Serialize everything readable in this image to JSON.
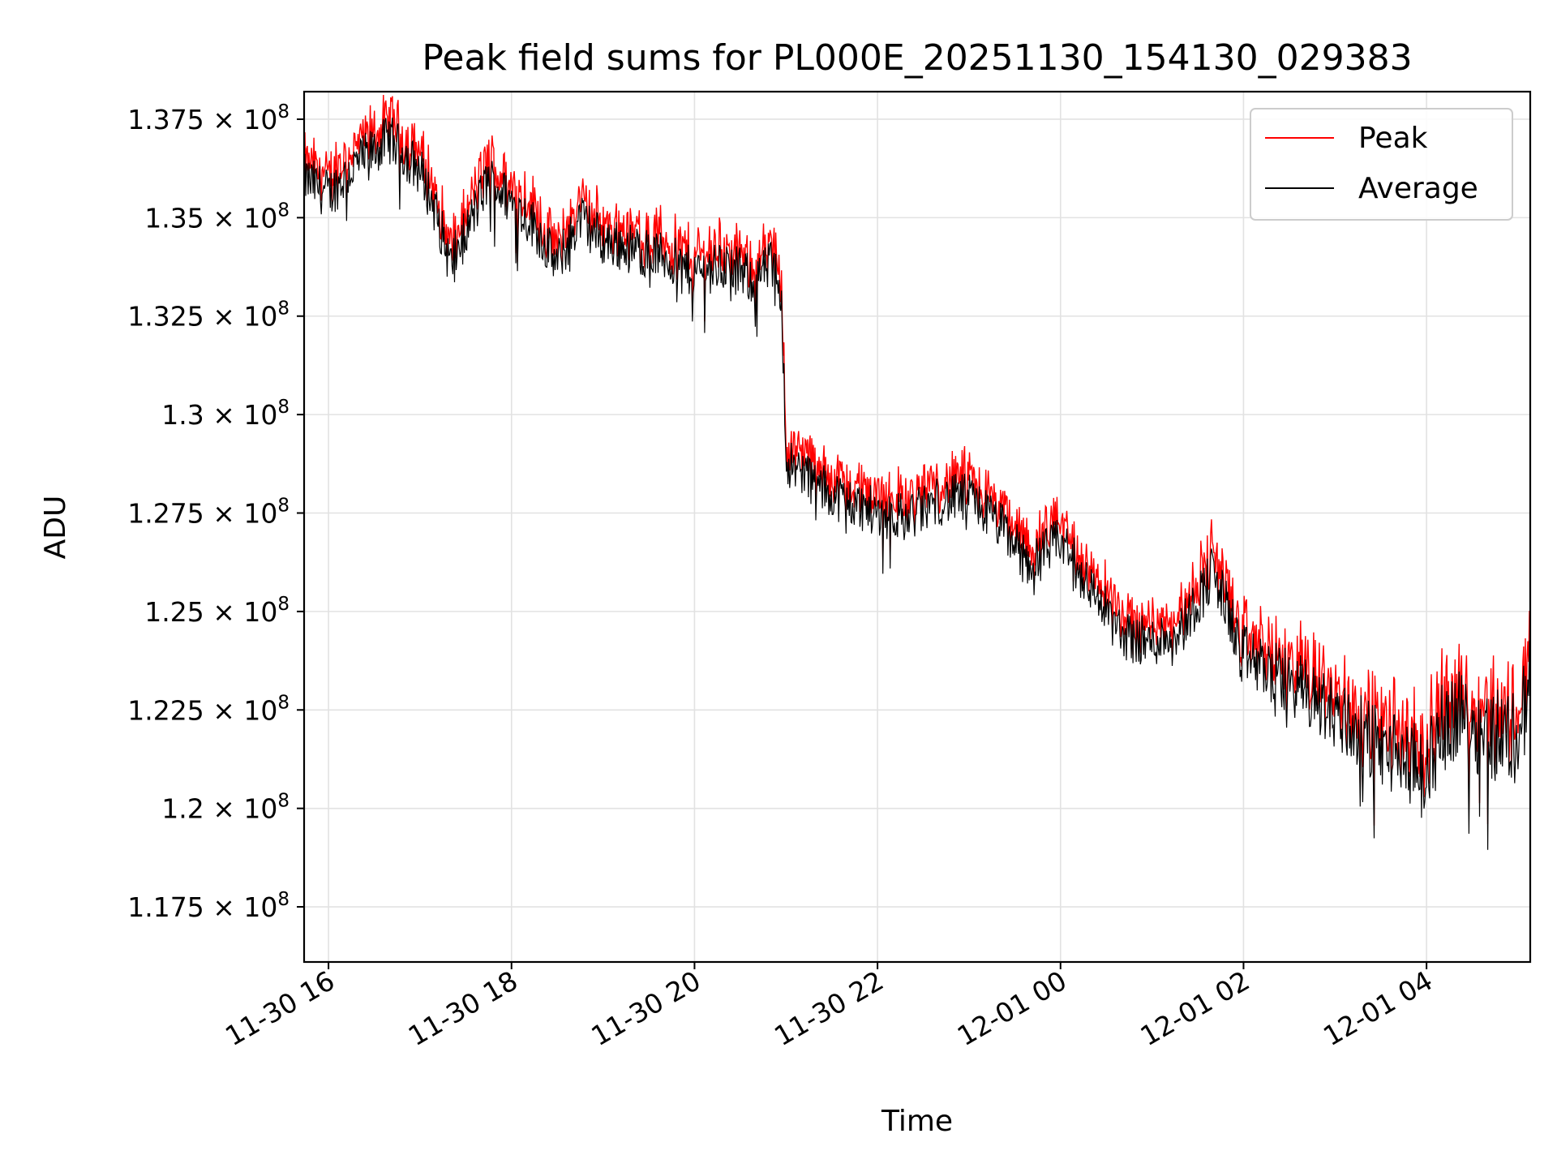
{
  "chart_data": {
    "type": "line",
    "title": "Peak field sums for PL000E_20251130_154130_029383",
    "xlabel": "Time",
    "ylabel": "ADU",
    "x_range": [
      "2025-11-30 15:44",
      "2025-12-01 05:08"
    ],
    "ylim": [
      116100000,
      138200000
    ],
    "y_ticks": [
      {
        "value": 117500000,
        "mantissa": "1.175",
        "exponent": "8"
      },
      {
        "value": 120000000,
        "mantissa": "1.2",
        "exponent": "8"
      },
      {
        "value": 122500000,
        "mantissa": "1.225",
        "exponent": "8"
      },
      {
        "value": 125000000,
        "mantissa": "1.25",
        "exponent": "8"
      },
      {
        "value": 127500000,
        "mantissa": "1.275",
        "exponent": "8"
      },
      {
        "value": 130000000,
        "mantissa": "1.3",
        "exponent": "8"
      },
      {
        "value": 132500000,
        "mantissa": "1.325",
        "exponent": "8"
      },
      {
        "value": 135000000,
        "mantissa": "1.35",
        "exponent": "8"
      },
      {
        "value": 137500000,
        "mantissa": "1.375",
        "exponent": "8"
      }
    ],
    "x_ticks": [
      {
        "time": "2025-11-30 16:00",
        "label": "11-30 16"
      },
      {
        "time": "2025-11-30 18:00",
        "label": "11-30 18"
      },
      {
        "time": "2025-11-30 20:00",
        "label": "11-30 20"
      },
      {
        "time": "2025-11-30 22:00",
        "label": "11-30 22"
      },
      {
        "time": "2025-12-01 00:00",
        "label": "12-01 00"
      },
      {
        "time": "2025-12-01 02:00",
        "label": "12-01 02"
      },
      {
        "time": "2025-12-01 04:00",
        "label": "12-01 04"
      }
    ],
    "times": [
      "2025-11-30 15:44",
      "2025-11-30 16:00",
      "2025-11-30 16:20",
      "2025-11-30 16:40",
      "2025-11-30 17:00",
      "2025-11-30 17:10",
      "2025-11-30 17:20",
      "2025-11-30 17:30",
      "2025-11-30 17:45",
      "2025-11-30 18:00",
      "2025-11-30 18:15",
      "2025-11-30 18:30",
      "2025-11-30 18:45",
      "2025-11-30 19:00",
      "2025-11-30 19:20",
      "2025-11-30 19:40",
      "2025-11-30 20:00",
      "2025-11-30 20:20",
      "2025-11-30 20:40",
      "2025-11-30 20:50",
      "2025-11-30 20:57",
      "2025-11-30 21:00",
      "2025-11-30 21:10",
      "2025-11-30 21:20",
      "2025-11-30 21:40",
      "2025-11-30 22:00",
      "2025-11-30 22:20",
      "2025-11-30 22:40",
      "2025-11-30 23:00",
      "2025-11-30 23:20",
      "2025-11-30 23:40",
      "2025-12-01 00:00",
      "2025-12-01 00:20",
      "2025-12-01 00:40",
      "2025-12-01 01:00",
      "2025-12-01 01:20",
      "2025-12-01 01:40",
      "2025-12-01 02:00",
      "2025-12-01 02:20",
      "2025-12-01 02:40",
      "2025-12-01 03:00",
      "2025-12-01 03:20",
      "2025-12-01 03:40",
      "2025-12-01 04:00",
      "2025-12-01 04:10",
      "2025-12-01 04:20",
      "2025-12-01 04:40",
      "2025-12-01 05:00",
      "2025-12-01 05:08"
    ],
    "series": [
      {
        "name": "Peak",
        "color": "#ff0000",
        "values": [
          136200000,
          135800000,
          136600000,
          137200000,
          136400000,
          135400000,
          134000000,
          134800000,
          136200000,
          135600000,
          135000000,
          134000000,
          135200000,
          134600000,
          134400000,
          134200000,
          133800000,
          134000000,
          133600000,
          134000000,
          133400000,
          129000000,
          128800000,
          128400000,
          128000000,
          127700000,
          127600000,
          128000000,
          128100000,
          127400000,
          126400000,
          127000000,
          125800000,
          124600000,
          124400000,
          124800000,
          126200000,
          124100000,
          123600000,
          123200000,
          122600000,
          122000000,
          121600000,
          121100000,
          122200000,
          122600000,
          122100000,
          122000000,
          123400000
        ]
      },
      {
        "name": "Average",
        "color": "#000000",
        "values": [
          136000000,
          135600000,
          136400000,
          137000000,
          136200000,
          135200000,
          133800000,
          134600000,
          136000000,
          135400000,
          134800000,
          133800000,
          135000000,
          134400000,
          134200000,
          134000000,
          133600000,
          133800000,
          133400000,
          133800000,
          133200000,
          128800000,
          128600000,
          128200000,
          127800000,
          127500000,
          127400000,
          127800000,
          127900000,
          127200000,
          126200000,
          126800000,
          125600000,
          124400000,
          124200000,
          124600000,
          126000000,
          123900000,
          123400000,
          123000000,
          122400000,
          121800000,
          121400000,
          120900000,
          122000000,
          122400000,
          121900000,
          121800000,
          123200000
        ]
      }
    ],
    "noise_amplitude": 800000,
    "legend_position": "top-right",
    "grid": true
  }
}
